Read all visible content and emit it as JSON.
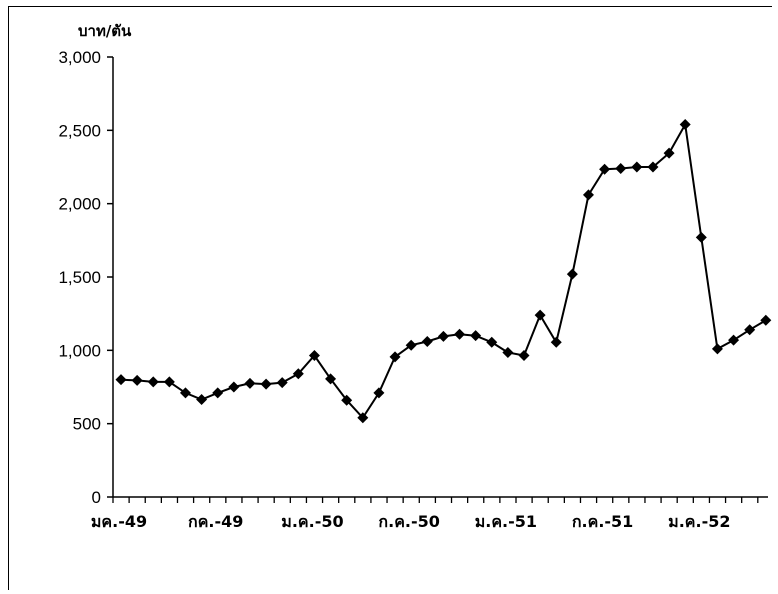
{
  "chart_data": {
    "type": "line",
    "ylabel": "บาท/ตัน",
    "ylim": [
      0,
      3000
    ],
    "yticks": [
      0,
      500,
      1000,
      1500,
      2000,
      2500,
      3000
    ],
    "ytick_labels": [
      "0",
      "500",
      "1,000",
      "1,500",
      "2,000",
      "2,500",
      "3,000"
    ],
    "xtick_labels": [
      {
        "label": "มค.-49",
        "index": 0
      },
      {
        "label": "กค.-49",
        "index": 6
      },
      {
        "label": "ม.ค.-50",
        "index": 12
      },
      {
        "label": "ก.ค.-50",
        "index": 18
      },
      {
        "label": "ม.ค.-51",
        "index": 24
      },
      {
        "label": "ก.ค.-51",
        "index": 30
      },
      {
        "label": "ม.ค.-52",
        "index": 36
      }
    ],
    "grid": false,
    "legend": "none",
    "series": [
      {
        "color": "#000000",
        "marker": "diamond",
        "values": [
          800,
          795,
          785,
          785,
          710,
          665,
          710,
          750,
          775,
          770,
          780,
          840,
          965,
          805,
          660,
          540,
          710,
          955,
          1035,
          1060,
          1095,
          1110,
          1100,
          1055,
          985,
          965,
          1240,
          1055,
          1520,
          2060,
          2235,
          2240,
          2250,
          2250,
          2345,
          2540,
          1770,
          1010,
          1070,
          1140,
          1205
        ]
      }
    ]
  }
}
